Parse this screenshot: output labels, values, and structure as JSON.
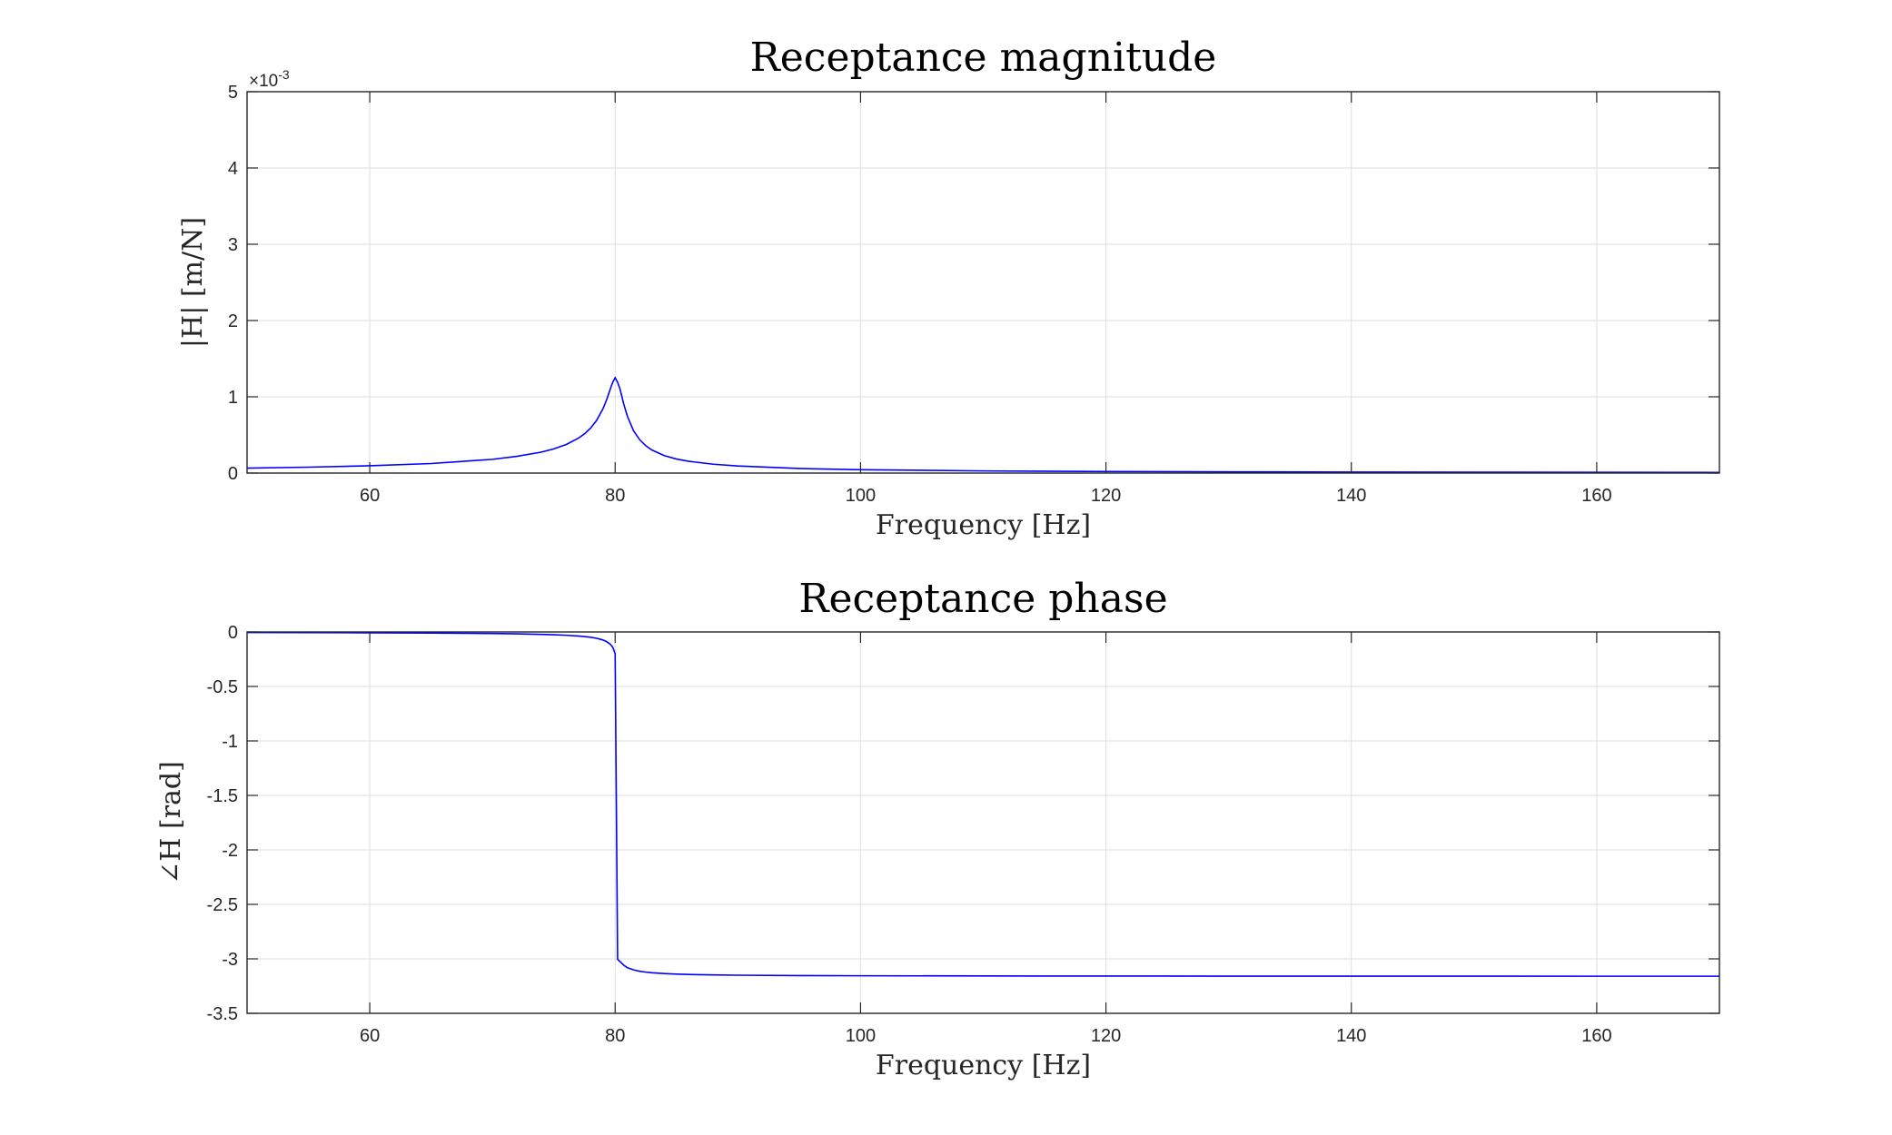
{
  "chart_data": [
    {
      "type": "line",
      "title": "Receptance magnitude",
      "xlabel": "Frequency [Hz]",
      "ylabel": "|H| [m/N]",
      "y_exponent_label": "×10",
      "y_exponent_power": "-3",
      "y_scale": 0.001,
      "xlim": [
        50,
        170
      ],
      "ylim": [
        0,
        0.005
      ],
      "x_ticks": [
        60,
        80,
        100,
        120,
        140,
        160
      ],
      "x_tick_labels": [
        "60",
        "80",
        "100",
        "120",
        "140",
        "160"
      ],
      "y_ticks": [
        0,
        0.001,
        0.002,
        0.003,
        0.004,
        0.005
      ],
      "y_tick_labels": [
        "0",
        "1",
        "2",
        "3",
        "4",
        "5"
      ],
      "grid": true,
      "line_color": "#0000ff",
      "series": [
        {
          "x": [
            50,
            55,
            60,
            65,
            70,
            72,
            74,
            75,
            76,
            77,
            77.5,
            78,
            78.5,
            79,
            79.3,
            79.6,
            79.8,
            80,
            80.2,
            80.4,
            80.7,
            81,
            81.5,
            82,
            82.5,
            83,
            84,
            85,
            86,
            88,
            90,
            95,
            100,
            110,
            120,
            130,
            140,
            150,
            160,
            170
          ],
          "y": [
            6.44e-05,
            7.73e-05,
            9.55e-05,
            0.000125,
            0.00018,
            0.000219,
            0.000275,
            0.000317,
            0.000374,
            0.000457,
            0.000514,
            0.00059,
            0.000693,
            0.00084,
            0.000958,
            0.0011,
            0.00119,
            0.00125,
            0.00119,
            0.0011,
            0.000904,
            0.000744,
            0.000554,
            0.000437,
            0.000358,
            0.000302,
            0.000229,
            0.000184,
            0.000154,
            0.000116,
            9.26e-05,
            5.99e-05,
            4.41e-05,
            2.83e-05,
            2.06e-05,
            1.61e-05,
            1.31e-05,
            1.1e-05,
            9.5e-06,
            8.3e-06
          ]
        }
      ]
    },
    {
      "type": "line",
      "title": "Receptance phase",
      "xlabel": "Frequency [Hz]",
      "ylabel": "∠H [rad]",
      "xlim": [
        50,
        170
      ],
      "ylim": [
        -3.5,
        0
      ],
      "x_ticks": [
        60,
        80,
        100,
        120,
        140,
        160
      ],
      "x_tick_labels": [
        "60",
        "80",
        "100",
        "120",
        "140",
        "160"
      ],
      "y_ticks": [
        0,
        -0.5,
        -1,
        -1.5,
        -2,
        -2.5,
        -3,
        -3.5
      ],
      "y_tick_labels": [
        "0",
        "-0.5",
        "-1",
        "-1.5",
        "-2",
        "-2.5",
        "-3",
        "-3.5"
      ],
      "grid": true,
      "line_color": "#0000ff",
      "series": [
        {
          "x": [
            50,
            55,
            60,
            65,
            70,
            72,
            74,
            75,
            76,
            77,
            77.5,
            78,
            78.5,
            79,
            79.3,
            79.6,
            79.8,
            80,
            80.2,
            80.4,
            80.7,
            81,
            81.5,
            82,
            82.5,
            83,
            84,
            85,
            86,
            88,
            90,
            95,
            100,
            110,
            120,
            130,
            140,
            150,
            160,
            170
          ],
          "y": [
            -0.0052,
            -0.0062,
            -0.0077,
            -0.01,
            -0.0144,
            -0.0175,
            -0.0221,
            -0.0255,
            -0.0302,
            -0.0371,
            -0.0421,
            -0.0487,
            -0.0581,
            -0.0734,
            -0.0883,
            -0.1125,
            -0.1387,
            -0.2,
            -3.0041,
            -3.0253,
            -3.0581,
            -3.0817,
            -3.1013,
            -3.1138,
            -3.1218,
            -3.1276,
            -3.1352,
            -3.14,
            -3.1434,
            -3.1476,
            -3.15,
            -3.1535,
            -3.1552,
            -3.1571,
            -3.158,
            -3.1585,
            -3.1588,
            -3.1591,
            -3.1593,
            -3.1594
          ]
        }
      ]
    }
  ]
}
